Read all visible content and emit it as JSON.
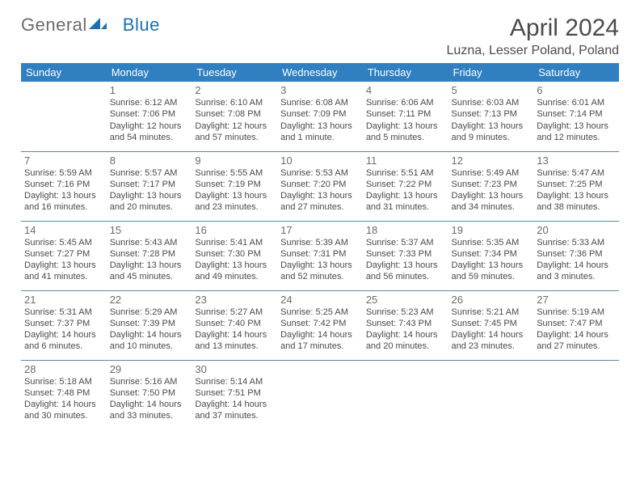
{
  "brand": {
    "part1": "General",
    "part2": "Blue"
  },
  "title": "April 2024",
  "location": "Luzna, Lesser Poland, Poland",
  "colors": {
    "header_bg": "#2f7fc1",
    "header_text": "#ffffff",
    "cell_border": "#5b87a8",
    "text": "#4a4a4a",
    "daynum": "#6b6b6b",
    "background": "#ffffff",
    "brand_accent": "#1f6fb2"
  },
  "weekdays": [
    "Sunday",
    "Monday",
    "Tuesday",
    "Wednesday",
    "Thursday",
    "Friday",
    "Saturday"
  ],
  "weeks": [
    [
      null,
      {
        "n": "1",
        "sr": "Sunrise: 6:12 AM",
        "ss": "Sunset: 7:06 PM",
        "d1": "Daylight: 12 hours",
        "d2": "and 54 minutes."
      },
      {
        "n": "2",
        "sr": "Sunrise: 6:10 AM",
        "ss": "Sunset: 7:08 PM",
        "d1": "Daylight: 12 hours",
        "d2": "and 57 minutes."
      },
      {
        "n": "3",
        "sr": "Sunrise: 6:08 AM",
        "ss": "Sunset: 7:09 PM",
        "d1": "Daylight: 13 hours",
        "d2": "and 1 minute."
      },
      {
        "n": "4",
        "sr": "Sunrise: 6:06 AM",
        "ss": "Sunset: 7:11 PM",
        "d1": "Daylight: 13 hours",
        "d2": "and 5 minutes."
      },
      {
        "n": "5",
        "sr": "Sunrise: 6:03 AM",
        "ss": "Sunset: 7:13 PM",
        "d1": "Daylight: 13 hours",
        "d2": "and 9 minutes."
      },
      {
        "n": "6",
        "sr": "Sunrise: 6:01 AM",
        "ss": "Sunset: 7:14 PM",
        "d1": "Daylight: 13 hours",
        "d2": "and 12 minutes."
      }
    ],
    [
      {
        "n": "7",
        "sr": "Sunrise: 5:59 AM",
        "ss": "Sunset: 7:16 PM",
        "d1": "Daylight: 13 hours",
        "d2": "and 16 minutes."
      },
      {
        "n": "8",
        "sr": "Sunrise: 5:57 AM",
        "ss": "Sunset: 7:17 PM",
        "d1": "Daylight: 13 hours",
        "d2": "and 20 minutes."
      },
      {
        "n": "9",
        "sr": "Sunrise: 5:55 AM",
        "ss": "Sunset: 7:19 PM",
        "d1": "Daylight: 13 hours",
        "d2": "and 23 minutes."
      },
      {
        "n": "10",
        "sr": "Sunrise: 5:53 AM",
        "ss": "Sunset: 7:20 PM",
        "d1": "Daylight: 13 hours",
        "d2": "and 27 minutes."
      },
      {
        "n": "11",
        "sr": "Sunrise: 5:51 AM",
        "ss": "Sunset: 7:22 PM",
        "d1": "Daylight: 13 hours",
        "d2": "and 31 minutes."
      },
      {
        "n": "12",
        "sr": "Sunrise: 5:49 AM",
        "ss": "Sunset: 7:23 PM",
        "d1": "Daylight: 13 hours",
        "d2": "and 34 minutes."
      },
      {
        "n": "13",
        "sr": "Sunrise: 5:47 AM",
        "ss": "Sunset: 7:25 PM",
        "d1": "Daylight: 13 hours",
        "d2": "and 38 minutes."
      }
    ],
    [
      {
        "n": "14",
        "sr": "Sunrise: 5:45 AM",
        "ss": "Sunset: 7:27 PM",
        "d1": "Daylight: 13 hours",
        "d2": "and 41 minutes."
      },
      {
        "n": "15",
        "sr": "Sunrise: 5:43 AM",
        "ss": "Sunset: 7:28 PM",
        "d1": "Daylight: 13 hours",
        "d2": "and 45 minutes."
      },
      {
        "n": "16",
        "sr": "Sunrise: 5:41 AM",
        "ss": "Sunset: 7:30 PM",
        "d1": "Daylight: 13 hours",
        "d2": "and 49 minutes."
      },
      {
        "n": "17",
        "sr": "Sunrise: 5:39 AM",
        "ss": "Sunset: 7:31 PM",
        "d1": "Daylight: 13 hours",
        "d2": "and 52 minutes."
      },
      {
        "n": "18",
        "sr": "Sunrise: 5:37 AM",
        "ss": "Sunset: 7:33 PM",
        "d1": "Daylight: 13 hours",
        "d2": "and 56 minutes."
      },
      {
        "n": "19",
        "sr": "Sunrise: 5:35 AM",
        "ss": "Sunset: 7:34 PM",
        "d1": "Daylight: 13 hours",
        "d2": "and 59 minutes."
      },
      {
        "n": "20",
        "sr": "Sunrise: 5:33 AM",
        "ss": "Sunset: 7:36 PM",
        "d1": "Daylight: 14 hours",
        "d2": "and 3 minutes."
      }
    ],
    [
      {
        "n": "21",
        "sr": "Sunrise: 5:31 AM",
        "ss": "Sunset: 7:37 PM",
        "d1": "Daylight: 14 hours",
        "d2": "and 6 minutes."
      },
      {
        "n": "22",
        "sr": "Sunrise: 5:29 AM",
        "ss": "Sunset: 7:39 PM",
        "d1": "Daylight: 14 hours",
        "d2": "and 10 minutes."
      },
      {
        "n": "23",
        "sr": "Sunrise: 5:27 AM",
        "ss": "Sunset: 7:40 PM",
        "d1": "Daylight: 14 hours",
        "d2": "and 13 minutes."
      },
      {
        "n": "24",
        "sr": "Sunrise: 5:25 AM",
        "ss": "Sunset: 7:42 PM",
        "d1": "Daylight: 14 hours",
        "d2": "and 17 minutes."
      },
      {
        "n": "25",
        "sr": "Sunrise: 5:23 AM",
        "ss": "Sunset: 7:43 PM",
        "d1": "Daylight: 14 hours",
        "d2": "and 20 minutes."
      },
      {
        "n": "26",
        "sr": "Sunrise: 5:21 AM",
        "ss": "Sunset: 7:45 PM",
        "d1": "Daylight: 14 hours",
        "d2": "and 23 minutes."
      },
      {
        "n": "27",
        "sr": "Sunrise: 5:19 AM",
        "ss": "Sunset: 7:47 PM",
        "d1": "Daylight: 14 hours",
        "d2": "and 27 minutes."
      }
    ],
    [
      {
        "n": "28",
        "sr": "Sunrise: 5:18 AM",
        "ss": "Sunset: 7:48 PM",
        "d1": "Daylight: 14 hours",
        "d2": "and 30 minutes."
      },
      {
        "n": "29",
        "sr": "Sunrise: 5:16 AM",
        "ss": "Sunset: 7:50 PM",
        "d1": "Daylight: 14 hours",
        "d2": "and 33 minutes."
      },
      {
        "n": "30",
        "sr": "Sunrise: 5:14 AM",
        "ss": "Sunset: 7:51 PM",
        "d1": "Daylight: 14 hours",
        "d2": "and 37 minutes."
      },
      null,
      null,
      null,
      null
    ]
  ]
}
